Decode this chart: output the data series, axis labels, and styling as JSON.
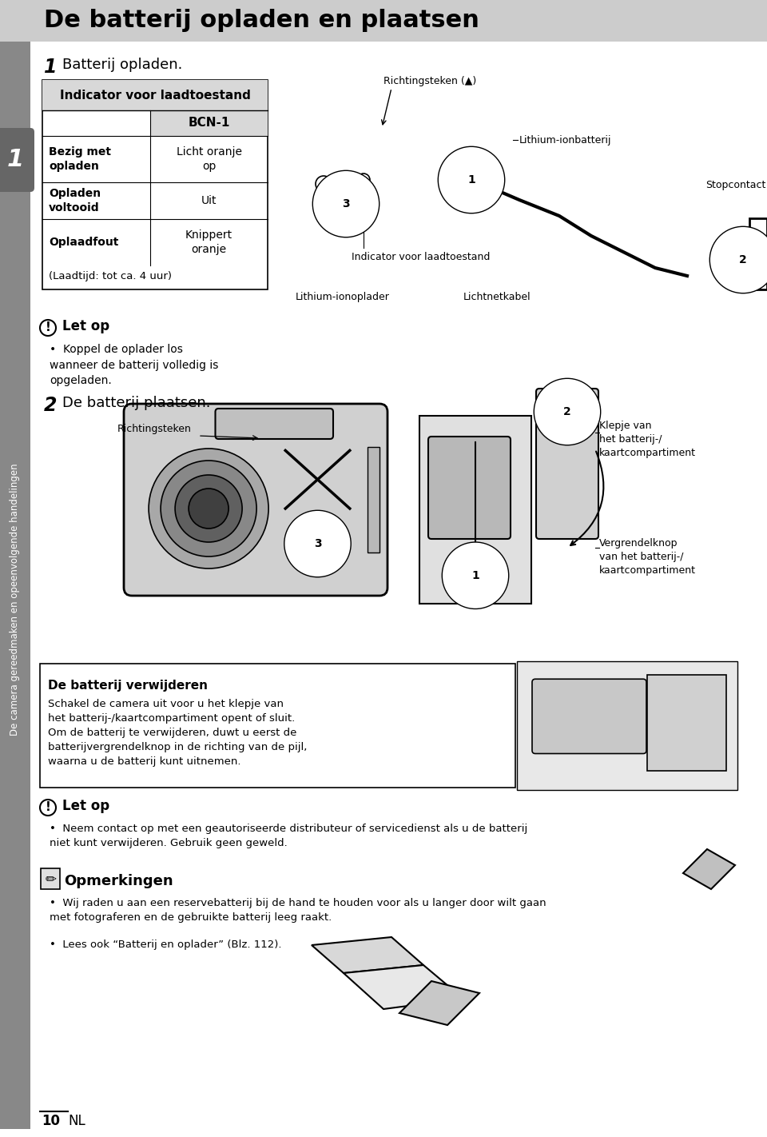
{
  "page_bg": "#ffffff",
  "header_bg": "#cccccc",
  "header_text": "De batterij opladen en plaatsen",
  "sidebar_bg": "#808080",
  "sidebar_number": "1",
  "sidebar_text": "De camera gereedmaken en opeenvolgende handelingen",
  "step1_title": "Batterij opladen.",
  "table_title": "Indicator voor laadtoestand",
  "table_col": "BCN-1",
  "table_rows": [
    [
      "Bezig met\nopladen",
      "Licht oranje\nop"
    ],
    [
      "Opladen\nvoltooid",
      "Uit"
    ],
    [
      "Oplaadfout",
      "Knippert\noranje"
    ]
  ],
  "table_footer": "(Laadtijd: tot ca. 4 uur)",
  "diag1_labels": {
    "richtingsteken": "Richtingsteken (▲)",
    "lithium_ion": "Lithium-ionbatterij",
    "stopcontact": "Stopcontact",
    "indicator": "Indicator voor laadtoestand",
    "lithium_oplader": "Lithium-ionoplader",
    "lichtnetkabel": "Lichtnetkabel"
  },
  "letop1_title": "Let op",
  "letop1_text": "Koppel de oplader los\nwanneer de batterij volledig is\nopgeladen.",
  "step2_title": "De batterij plaatsen.",
  "diag2_labels": {
    "richtingsteken": "Richtingsteken",
    "klepje": "Klepje van\nhet batterij-/\nkaartcompartiment",
    "vergrendelknop": "Vergrendelknop\nvan het batterij-/\nkaartcompartiment"
  },
  "verw_title": "De batterij verwijderen",
  "verw_text": "Schakel de camera uit voor u het klepje van\nhet batterij-/kaartcompartiment opent of sluit.\nOm de batterij te verwijderen, duwt u eerst de\nbatterijvergrendelknop in de richting van de pijl,\nwaarna u de batterij kunt uitnemen.",
  "letop2_title": "Let op",
  "letop2_text": "Neem contact op met een geautoriseerde distributeur of servicedienst als u de batterij\nniet kunt verwijderen. Gebruik geen geweld.",
  "opmerking_title": "Opmerkingen",
  "opmerking_bullets": [
    "Wij raden u aan een reservebatterij bij de hand te houden voor als u langer door wilt gaan\nmet fotograferen en de gebruikte batterij leeg raakt.",
    "Lees ook “Batterij en oplader” (Blz. 112)."
  ],
  "page_number": "10",
  "page_lang": "NL",
  "gray_header": "#cccccc",
  "gray_table": "#d8d8d8",
  "gray_sidebar": "#888888"
}
